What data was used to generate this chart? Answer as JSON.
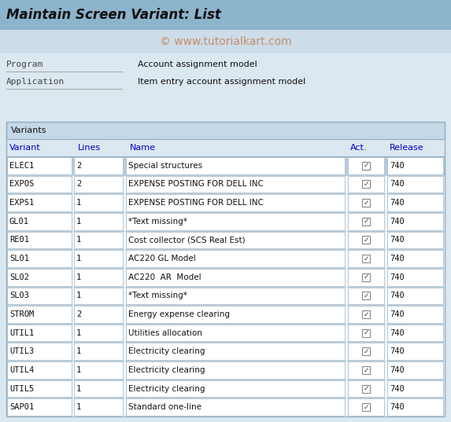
{
  "title": "Maintain Screen Variant: List",
  "watermark": "© www.tutorialkart.com",
  "program_label": "Program",
  "program_value": "Account assignment model",
  "application_label": "Application",
  "application_value": "Item entry account assignment model",
  "section_label": "Variants",
  "col_headers": [
    "Variant",
    "Lines",
    "Name",
    "Act.",
    "Release"
  ],
  "rows": [
    [
      "ELEC1",
      "2",
      "Special structures",
      true,
      "740",
      true
    ],
    [
      "EXPOS",
      "2",
      "EXPENSE POSTING FOR DELL INC",
      true,
      "740",
      false
    ],
    [
      "EXPS1",
      "1",
      "EXPENSE POSTING FOR DELL INC",
      true,
      "740",
      false
    ],
    [
      "GL01",
      "1",
      "*Text missing*",
      true,
      "740",
      false
    ],
    [
      "RE01",
      "1",
      "Cost collector (SCS Real Est)",
      true,
      "740",
      false
    ],
    [
      "SL01",
      "1",
      "AC220 GL Model",
      true,
      "740",
      false
    ],
    [
      "SL02",
      "1",
      "AC220  AR  Model",
      true,
      "740",
      false
    ],
    [
      "SL03",
      "1",
      "*Text missing*",
      true,
      "740",
      false
    ],
    [
      "STROM",
      "2",
      "Energy expense clearing",
      true,
      "740",
      false
    ],
    [
      "UTIL1",
      "1",
      "Utilities allocation",
      true,
      "740",
      false
    ],
    [
      "UTIL3",
      "1",
      "Electricity clearing",
      true,
      "740",
      false
    ],
    [
      "UTIL4",
      "1",
      "Electricity clearing",
      true,
      "740",
      false
    ],
    [
      "UTIL5",
      "1",
      "Electricity clearing",
      true,
      "740",
      false
    ],
    [
      "SAP01",
      "1",
      "Standard one-line",
      true,
      "740",
      false
    ]
  ],
  "bg_color": "#dce8f0",
  "title_bg": "#8cb4cc",
  "watermark_bar_bg": "#ccdce8",
  "col_header_color": "#0000cc",
  "row_bg_white": "#ffffff",
  "row_bg_selected": "#b8cce0",
  "row_bg_normal": "#f4f8fb",
  "cell_border": "#a0b8c8",
  "section_header_bg": "#c4d8e8",
  "watermark_color": "#c8845a",
  "title_text_color": "#111111",
  "label_color": "#444444",
  "value_color": "#111111"
}
